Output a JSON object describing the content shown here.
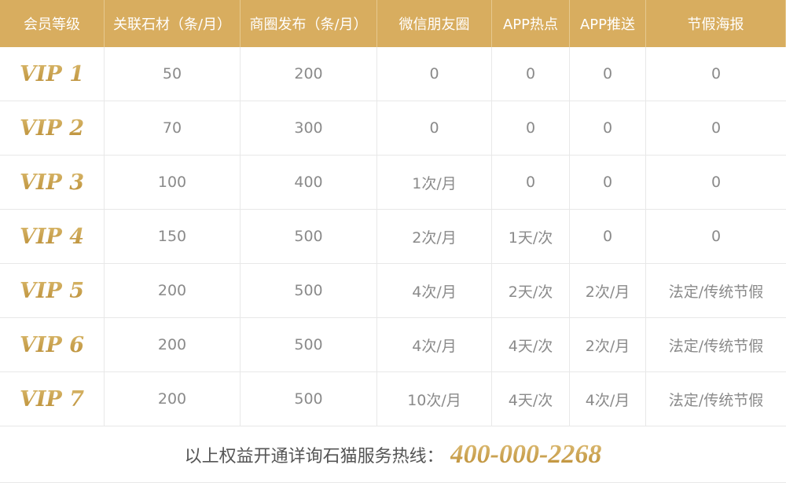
{
  "colors": {
    "header_bg": "#d8ad5f",
    "gold": "#c9a04c",
    "cell_text": "#8a8a8a"
  },
  "headers": [
    "会员等级",
    "关联石材（条/月）",
    "商圈发布（条/月）",
    "微信朋友圈",
    "APP热点",
    "APP推送",
    "节假海报"
  ],
  "rows": [
    [
      "VIP 1",
      "50",
      "200",
      "0",
      "0",
      "0",
      "0"
    ],
    [
      "VIP 2",
      "70",
      "300",
      "0",
      "0",
      "0",
      "0"
    ],
    [
      "VIP 3",
      "100",
      "400",
      "1次/月",
      "0",
      "0",
      "0"
    ],
    [
      "VIP 4",
      "150",
      "500",
      "2次/月",
      "1天/次",
      "0",
      "0"
    ],
    [
      "VIP 5",
      "200",
      "500",
      "4次/月",
      "2天/次",
      "2次/月",
      "法定/传统节假"
    ],
    [
      "VIP 6",
      "200",
      "500",
      "4次/月",
      "4天/次",
      "2次/月",
      "法定/传统节假"
    ],
    [
      "VIP 7",
      "200",
      "500",
      "10次/月",
      "4天/次",
      "4次/月",
      "法定/传统节假"
    ]
  ],
  "footer": {
    "text": "以上权益开通详询石猫服务热线：",
    "phone": "400-000-2268"
  }
}
